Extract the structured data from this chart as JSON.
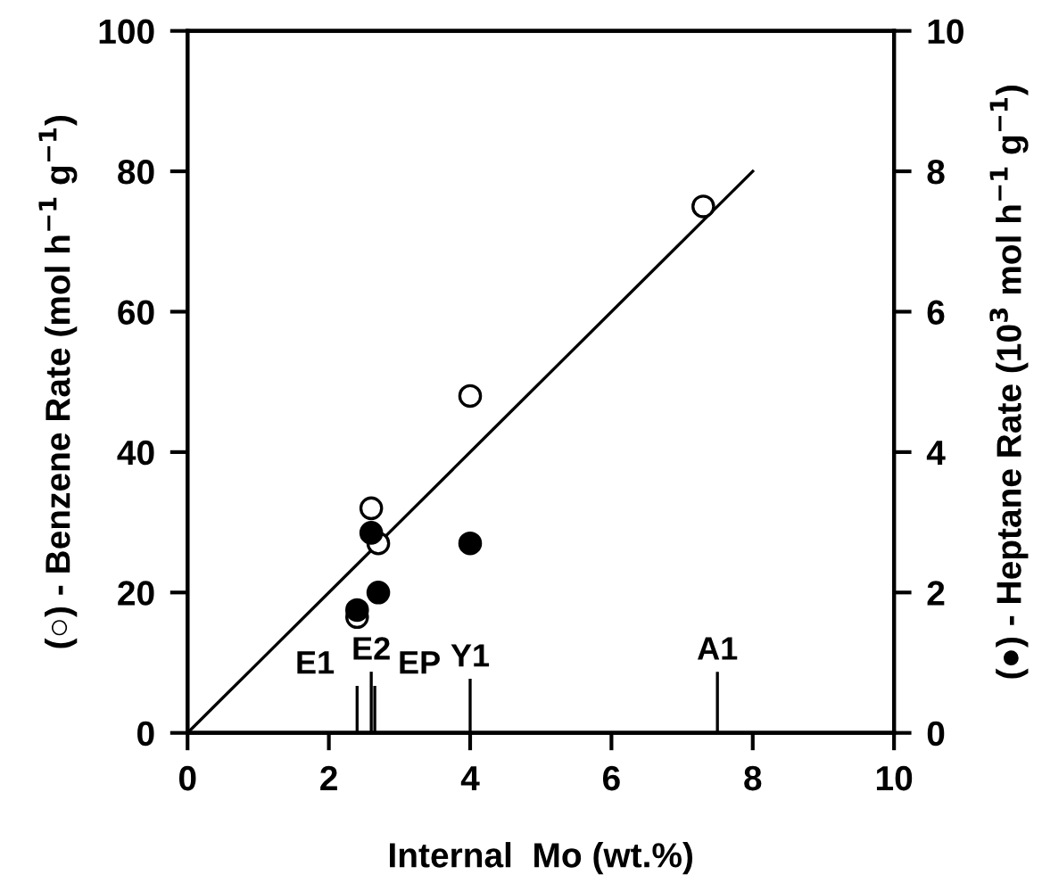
{
  "chart_data": {
    "type": "scatter",
    "xlabel": "Internal  Mo (wt.%)",
    "ylabel": "(○) - Benzene Rate (mol h$^{−1}$ g$^{−1}$)",
    "y2label": "(●) - Heptane Rate (10$^{3}$ mol h$^{−1}$ g$^{−1}$)",
    "xlim": [
      0,
      10
    ],
    "xticks": [
      0,
      2,
      4,
      6,
      8,
      10
    ],
    "ylim": [
      0,
      100
    ],
    "yticks": [
      0,
      20,
      40,
      60,
      80,
      100
    ],
    "y2lim": [
      0,
      10
    ],
    "y2ticks": [
      0,
      2,
      4,
      6,
      8,
      10
    ],
    "grid": false,
    "legend": false,
    "series": [
      {
        "marker": "circle",
        "color": "#ffffff",
        "x": [
          7.3,
          4.0,
          2.6,
          2.7,
          2.4
        ],
        "values": [
          75,
          48,
          32,
          27,
          16.5
        ]
      },
      {
        "marker": "circle",
        "color": "#000000",
        "axis": "y2",
        "x": [
          2.6,
          4.0,
          2.7,
          2.4
        ],
        "values": [
          2.85,
          2.7,
          2.0,
          1.75
        ]
      },
      {
        "type": "line",
        "color": "#000000",
        "line_style": "solid",
        "x": [
          0,
          8
        ],
        "values": [
          0,
          80
        ]
      }
    ],
    "ref_lines": [
      {
        "axis": "x",
        "value": 2.4,
        "label": "E1"
      },
      {
        "axis": "x",
        "value": 2.6,
        "label": "E2"
      },
      {
        "axis": "x",
        "value": 2.65,
        "label": "EP"
      },
      {
        "axis": "x",
        "value": 4.0,
        "label": "Y1"
      },
      {
        "axis": "x",
        "value": 7.5,
        "label": "A1"
      }
    ]
  }
}
